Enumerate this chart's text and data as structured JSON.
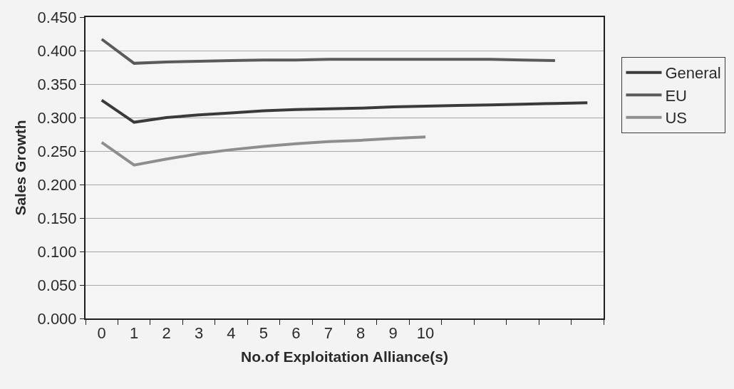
{
  "chart_data": {
    "type": "line",
    "xlabel": "No.of Exploitation Alliance(s)",
    "ylabel": "Sales Growth",
    "categories": [
      "0",
      "1",
      "2",
      "3",
      "4",
      "5",
      "6",
      "7",
      "8",
      "9",
      "10",
      null,
      null,
      null,
      null,
      null
    ],
    "series": [
      {
        "name": "General",
        "color": "#3a3a3a",
        "values": [
          0.326,
          0.293,
          0.3,
          0.304,
          0.307,
          0.31,
          0.312,
          0.313,
          0.314,
          0.316,
          0.317,
          0.318,
          0.319,
          0.32,
          0.321,
          0.322
        ]
      },
      {
        "name": "EU",
        "color": "#5a5a5a",
        "values": [
          0.417,
          0.381,
          0.383,
          0.384,
          0.385,
          0.386,
          0.386,
          0.387,
          0.387,
          0.387,
          0.387,
          0.387,
          0.387,
          0.386,
          0.385,
          null
        ]
      },
      {
        "name": "US",
        "color": "#8e8e8e",
        "values": [
          0.263,
          0.229,
          0.238,
          0.246,
          0.252,
          0.257,
          0.261,
          0.264,
          0.266,
          0.269,
          0.271,
          null,
          null,
          null,
          null,
          null
        ]
      }
    ],
    "ylim": [
      0,
      0.45
    ],
    "yticks": [
      {
        "value": 0,
        "label": "0.000"
      },
      {
        "value": 0.05,
        "label": "0.050"
      },
      {
        "value": 0.1,
        "label": "0.100"
      },
      {
        "value": 0.15,
        "label": "0.150"
      },
      {
        "value": 0.2,
        "label": "0.200"
      },
      {
        "value": 0.25,
        "label": "0.250"
      },
      {
        "value": 0.3,
        "label": "0.300"
      },
      {
        "value": 0.35,
        "label": "0.350"
      },
      {
        "value": 0.4,
        "label": "0.400"
      },
      {
        "value": 0.45,
        "label": "0.450"
      }
    ],
    "grid": "y",
    "legend": "right"
  }
}
